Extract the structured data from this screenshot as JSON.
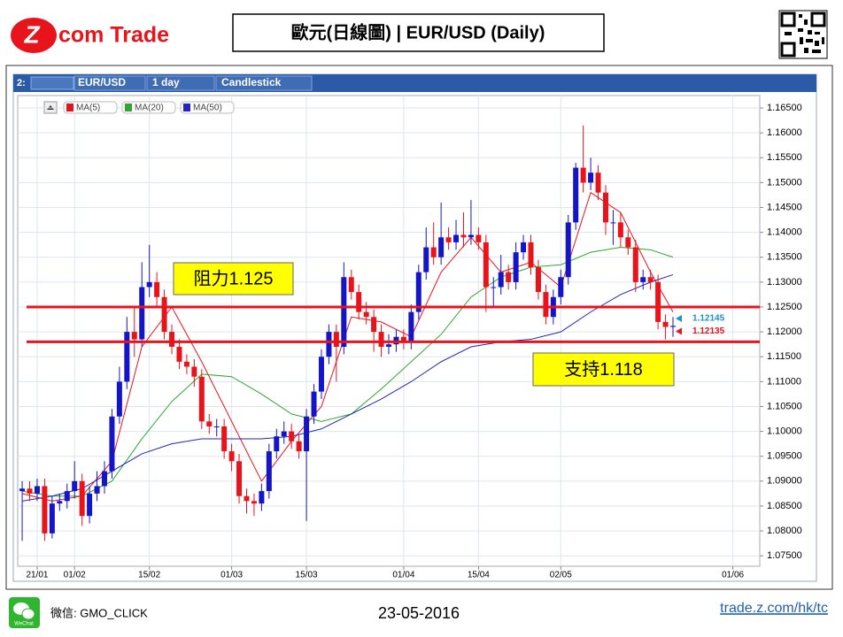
{
  "header": {
    "logo_mark": "Z",
    "logo_text": "com Trade",
    "title": "歐元(日線圖) | EUR/USD (Daily)"
  },
  "toolbar": {
    "slot": "2:",
    "symbol": "EUR/USD",
    "period": "1 day",
    "style": "Candlestick"
  },
  "chart_data": {
    "type": "candlestick",
    "up_color": "#1515c8",
    "down_color": "#e8141b",
    "grid": true,
    "open": [
      1.088,
      1.0885,
      1.0875,
      1.089,
      1.0795,
      1.0855,
      1.086,
      1.088,
      1.09,
      1.083,
      1.0875,
      1.089,
      1.092,
      1.103,
      1.11,
      1.12,
      1.1185,
      1.129,
      1.13,
      1.127,
      1.12,
      1.117,
      1.114,
      1.113,
      1.111,
      1.102,
      1.101,
      1.101,
      1.096,
      1.094,
      1.087,
      1.086,
      1.0855,
      1.088,
      1.096,
      1.099,
      1.1,
      1.098,
      1.096,
      1.103,
      1.108,
      1.115,
      1.12,
      1.117,
      1.131,
      1.128,
      1.124,
      1.123,
      1.12,
      1.117,
      1.1175,
      1.119,
      1.118,
      1.124,
      1.132,
      1.137,
      1.135,
      1.139,
      1.138,
      1.1395,
      1.139,
      1.1395,
      1.138,
      1.129,
      1.129,
      1.132,
      1.13,
      1.136,
      1.138,
      1.133,
      1.128,
      1.123,
      1.127,
      1.131,
      1.142,
      1.153,
      1.15,
      1.152,
      1.148,
      1.142,
      1.142,
      1.139,
      1.137,
      1.13,
      1.131,
      1.13,
      1.122,
      1.121
    ],
    "high": [
      1.09,
      1.09,
      1.0905,
      1.0905,
      1.087,
      1.0875,
      1.0895,
      1.094,
      1.0915,
      1.089,
      1.092,
      1.094,
      1.1045,
      1.113,
      1.123,
      1.125,
      1.134,
      1.1375,
      1.132,
      1.1285,
      1.1215,
      1.1185,
      1.1155,
      1.1145,
      1.1125,
      1.1035,
      1.1025,
      1.1025,
      1.0975,
      1.0955,
      1.0885,
      1.0875,
      1.0895,
      1.0975,
      1.1005,
      1.102,
      1.1015,
      1.0995,
      1.1045,
      1.1095,
      1.1165,
      1.1215,
      1.1215,
      1.134,
      1.1325,
      1.1295,
      1.126,
      1.1245,
      1.1215,
      1.1195,
      1.1205,
      1.1205,
      1.1255,
      1.1335,
      1.141,
      1.142,
      1.146,
      1.141,
      1.1425,
      1.144,
      1.1465,
      1.141,
      1.1395,
      1.131,
      1.1355,
      1.1335,
      1.138,
      1.1395,
      1.1395,
      1.1345,
      1.1295,
      1.1285,
      1.1325,
      1.1435,
      1.154,
      1.1615,
      1.155,
      1.1535,
      1.1495,
      1.1445,
      1.144,
      1.1405,
      1.1385,
      1.1325,
      1.1325,
      1.1315,
      1.1235,
      1.123
    ],
    "low": [
      1.078,
      1.086,
      1.086,
      1.078,
      1.0785,
      1.084,
      1.0845,
      1.0865,
      1.081,
      1.0815,
      1.086,
      1.0875,
      1.0905,
      1.1015,
      1.1085,
      1.115,
      1.117,
      1.127,
      1.125,
      1.1185,
      1.1155,
      1.1125,
      1.1115,
      1.109,
      1.1005,
      1.0995,
      1.099,
      1.0945,
      1.092,
      1.0855,
      1.0835,
      1.083,
      1.084,
      1.0865,
      1.0945,
      1.0975,
      1.0965,
      1.0945,
      1.082,
      1.1015,
      1.1065,
      1.1135,
      1.11,
      1.1155,
      1.1265,
      1.1225,
      1.1215,
      1.116,
      1.115,
      1.1155,
      1.116,
      1.1165,
      1.1165,
      1.1225,
      1.1305,
      1.1335,
      1.1335,
      1.1365,
      1.1365,
      1.137,
      1.1375,
      1.1365,
      1.124,
      1.125,
      1.1275,
      1.1285,
      1.1285,
      1.1345,
      1.1315,
      1.1265,
      1.1215,
      1.1215,
      1.1255,
      1.1295,
      1.1405,
      1.148,
      1.1485,
      1.1465,
      1.1395,
      1.1375,
      1.137,
      1.1355,
      1.128,
      1.1285,
      1.1285,
      1.1205,
      1.1185,
      1.119
    ],
    "close": [
      1.0885,
      1.0875,
      1.089,
      1.0795,
      1.0855,
      1.086,
      1.088,
      1.09,
      1.083,
      1.0875,
      1.089,
      1.092,
      1.103,
      1.11,
      1.12,
      1.1185,
      1.129,
      1.13,
      1.127,
      1.12,
      1.117,
      1.114,
      1.113,
      1.111,
      1.102,
      1.101,
      1.101,
      1.096,
      1.094,
      1.087,
      1.086,
      1.0855,
      1.088,
      1.096,
      1.099,
      1.1,
      1.098,
      1.096,
      1.103,
      1.108,
      1.115,
      1.12,
      1.117,
      1.131,
      1.128,
      1.124,
      1.123,
      1.12,
      1.117,
      1.1175,
      1.119,
      1.118,
      1.124,
      1.132,
      1.137,
      1.135,
      1.139,
      1.138,
      1.1395,
      1.139,
      1.1395,
      1.138,
      1.129,
      1.129,
      1.132,
      1.13,
      1.136,
      1.138,
      1.133,
      1.128,
      1.123,
      1.127,
      1.131,
      1.142,
      1.153,
      1.15,
      1.152,
      1.148,
      1.142,
      1.142,
      1.139,
      1.137,
      1.13,
      1.131,
      1.13,
      1.122,
      1.121,
      1.1212
    ],
    "series": [
      {
        "name": "MA(5)",
        "color": "#e8141b",
        "x": [
          0,
          4,
          8,
          12,
          16,
          20,
          24,
          28,
          32,
          36,
          40,
          44,
          48,
          52,
          56,
          60,
          64,
          68,
          72,
          76,
          80,
          84,
          87
        ],
        "values": [
          1.0875,
          1.086,
          1.087,
          1.094,
          1.117,
          1.125,
          1.114,
          1.102,
          1.09,
          1.098,
          1.105,
          1.123,
          1.122,
          1.119,
          1.132,
          1.139,
          1.132,
          1.134,
          1.129,
          1.148,
          1.144,
          1.132,
          1.124
        ]
      },
      {
        "name": "MA(20)",
        "color": "#2ea82e",
        "x": [
          0,
          4,
          8,
          12,
          16,
          20,
          24,
          28,
          32,
          36,
          40,
          44,
          48,
          52,
          56,
          60,
          64,
          68,
          72,
          76,
          80,
          84,
          87
        ],
        "values": [
          1.088,
          1.087,
          1.087,
          1.09,
          1.0985,
          1.106,
          1.1115,
          1.111,
          1.1075,
          1.1035,
          1.102,
          1.1035,
          1.1085,
          1.114,
          1.1195,
          1.127,
          1.131,
          1.133,
          1.1335,
          1.136,
          1.137,
          1.1365,
          1.135
        ]
      },
      {
        "name": "MA(50)",
        "color": "#2424c0",
        "x": [
          0,
          4,
          8,
          12,
          16,
          20,
          24,
          28,
          32,
          36,
          40,
          44,
          48,
          52,
          56,
          60,
          64,
          68,
          72,
          76,
          80,
          84,
          87
        ],
        "values": [
          1.086,
          1.087,
          1.0885,
          1.092,
          1.0955,
          1.0975,
          1.0985,
          1.0985,
          1.0985,
          1.099,
          1.1005,
          1.1035,
          1.1065,
          1.11,
          1.114,
          1.117,
          1.118,
          1.1185,
          1.12,
          1.124,
          1.1275,
          1.13,
          1.1315
        ]
      }
    ],
    "xlim": [
      -0.6,
      98.6
    ],
    "xticks": [
      {
        "value": 2,
        "label": "21/01"
      },
      {
        "value": 7,
        "label": "01/02"
      },
      {
        "value": 17,
        "label": "15/02"
      },
      {
        "value": 28,
        "label": "01/03"
      },
      {
        "value": 38,
        "label": "15/03"
      },
      {
        "value": 51,
        "label": "01/04"
      },
      {
        "value": 61,
        "label": "15/04"
      },
      {
        "value": 72,
        "label": "02/05"
      },
      {
        "value": 95,
        "label": "01/06"
      }
    ],
    "ylim": [
      1.0729,
      1.1675
    ],
    "yticks": [
      {
        "value": 1.075,
        "label": "1.07500"
      },
      {
        "value": 1.08,
        "label": "1.08000"
      },
      {
        "value": 1.085,
        "label": "1.08500"
      },
      {
        "value": 1.09,
        "label": "1.09000"
      },
      {
        "value": 1.095,
        "label": "1.09500"
      },
      {
        "value": 1.1,
        "label": "1.10000"
      },
      {
        "value": 1.105,
        "label": "1.10500"
      },
      {
        "value": 1.11,
        "label": "1.11000"
      },
      {
        "value": 1.115,
        "label": "1.11500"
      },
      {
        "value": 1.12,
        "label": "1.12000"
      },
      {
        "value": 1.125,
        "label": "1.12500"
      },
      {
        "value": 1.13,
        "label": "1.13000"
      },
      {
        "value": 1.135,
        "label": "1.13500"
      },
      {
        "value": 1.14,
        "label": "1.14000"
      },
      {
        "value": 1.145,
        "label": "1.14500"
      },
      {
        "value": 1.15,
        "label": "1.15000"
      },
      {
        "value": 1.155,
        "label": "1.15500"
      },
      {
        "value": 1.16,
        "label": "1.16000"
      },
      {
        "value": 1.165,
        "label": "1.16500"
      }
    ],
    "hlines": [
      {
        "value": 1.125,
        "label": "阻力1.125",
        "color": "#e8141b"
      },
      {
        "value": 1.118,
        "label": "支持1.118",
        "color": "#e8141b"
      }
    ],
    "price_tags": [
      {
        "value": 1.12145,
        "color": "#1e90d0"
      },
      {
        "value": 1.12135,
        "color": "#e8141b"
      }
    ]
  },
  "footer": {
    "wechat_icon": "WeChat",
    "wechat": "微信: GMO_CLICK",
    "date": "23-05-2016",
    "link": "trade.z.com/hk/tc"
  }
}
